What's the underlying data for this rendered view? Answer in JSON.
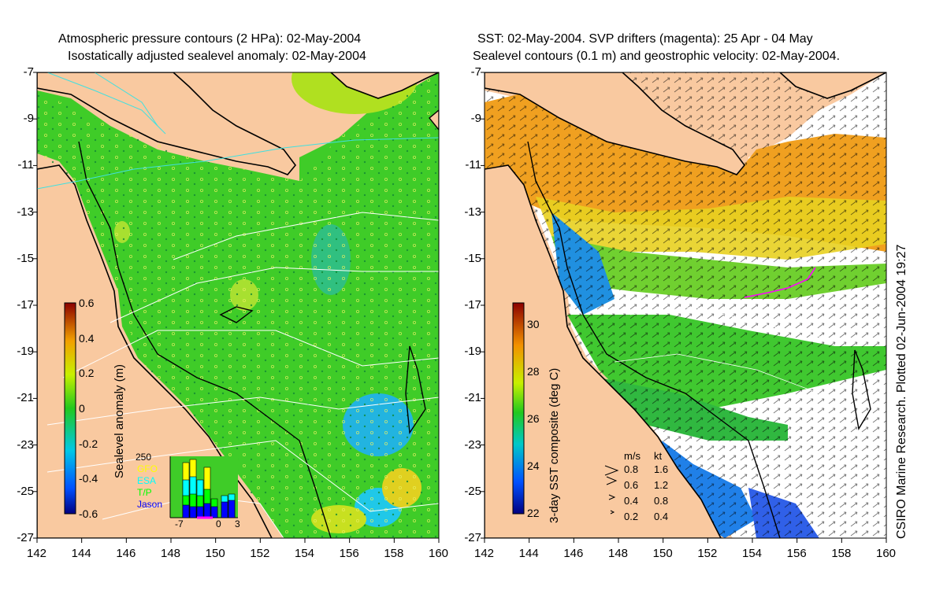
{
  "left_panel": {
    "title_line1": "Atmospheric pressure contours (2 HPa): 02-May-2004",
    "title_line2": "Isostatically adjusted sealevel anomaly: 02-May-2004",
    "colorbar_label": "Sealevel anomaly (m)",
    "colorbar_ticks": [
      "0.6",
      "0.4",
      "0.2",
      "0",
      "-0.2",
      "-0.4",
      "-0.6"
    ],
    "inset": {
      "ymax_label": "250",
      "legend": [
        {
          "label": "GFO",
          "color": "#ffff00"
        },
        {
          "label": "ESA",
          "color": "#00ffff"
        },
        {
          "label": "T/P",
          "color": "#00ff00"
        },
        {
          "label": "Jason",
          "color": "#0000ff"
        }
      ],
      "xticks": [
        "-7",
        "0",
        "3"
      ]
    }
  },
  "right_panel": {
    "title_line1": "SST: 02-May-2004. SVP drifters (magenta): 25 Apr - 04 May",
    "title_line2": "Sealevel contours (0.1 m) and geostrophic velocity: 02-May-2004.",
    "colorbar_label": "3-day SST composite (deg C)",
    "colorbar_ticks": [
      "30",
      "28",
      "26",
      "24",
      "22"
    ],
    "speed_legend": {
      "header_ms": "m/s",
      "header_kt": "kt",
      "rows": [
        {
          "ms": "0.8",
          "kt": "1.6"
        },
        {
          "ms": "0.6",
          "kt": "1.2"
        },
        {
          "ms": "0.4",
          "kt": "0.8"
        },
        {
          "ms": "0.2",
          "kt": "0.4"
        }
      ]
    }
  },
  "axes": {
    "lon_ticks": [
      "142",
      "144",
      "146",
      "148",
      "150",
      "152",
      "154",
      "156",
      "158",
      "160"
    ],
    "lat_ticks": [
      "-7",
      "-9",
      "-11",
      "-13",
      "-15",
      "-17",
      "-19",
      "-21",
      "-23",
      "-25",
      "-27"
    ]
  },
  "credit": "CSIRO Marine Research. Plotted 02-Jun-2004 19:27",
  "colors": {
    "land": "#f9c9a0",
    "sla_green": "#33cc22",
    "sst_orange": "#f0a020",
    "coast": "#000000"
  }
}
